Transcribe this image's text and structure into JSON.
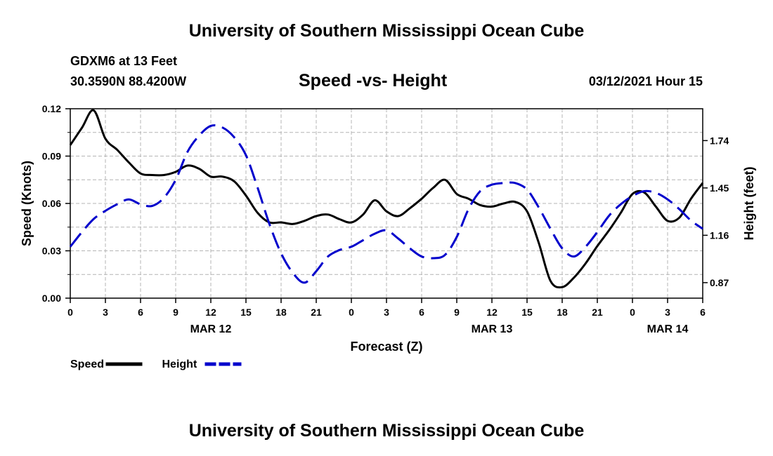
{
  "header": {
    "title": "University of Southern Mississippi Ocean Cube",
    "station": "GDXM6 at 13 Feet",
    "coordinates": "30.3590N 88.4200W",
    "chart_title": "Speed -vs- Height",
    "datetime": "03/12/2021 Hour 15",
    "footer_title": "University of Southern Mississippi Ocean Cube"
  },
  "chart_data": {
    "type": "line",
    "title": "Speed -vs- Height",
    "xlabel": "Forecast (Z)",
    "ylabel": "Speed (Knots)",
    "y2label": "Height (feet)",
    "xlim": [
      0,
      54
    ],
    "ylim": [
      0,
      0.12
    ],
    "y2lim": [
      0.775,
      1.935
    ],
    "grid": true,
    "x_ticks": [
      {
        "x": 0,
        "label": "0"
      },
      {
        "x": 3,
        "label": "3"
      },
      {
        "x": 6,
        "label": "6"
      },
      {
        "x": 9,
        "label": "9"
      },
      {
        "x": 12,
        "label": "12"
      },
      {
        "x": 15,
        "label": "15"
      },
      {
        "x": 18,
        "label": "18"
      },
      {
        "x": 21,
        "label": "21"
      },
      {
        "x": 24,
        "label": "0"
      },
      {
        "x": 27,
        "label": "3"
      },
      {
        "x": 30,
        "label": "6"
      },
      {
        "x": 33,
        "label": "9"
      },
      {
        "x": 36,
        "label": "12"
      },
      {
        "x": 39,
        "label": "15"
      },
      {
        "x": 42,
        "label": "18"
      },
      {
        "x": 45,
        "label": "21"
      },
      {
        "x": 48,
        "label": "0"
      },
      {
        "x": 51,
        "label": "3"
      },
      {
        "x": 54,
        "label": "6"
      }
    ],
    "date_labels": [
      {
        "x": 12,
        "label": "MAR 12"
      },
      {
        "x": 36,
        "label": "MAR 13"
      },
      {
        "x": 51,
        "label": "MAR 14"
      }
    ],
    "y_ticks": [
      {
        "v": 0.0,
        "label": "0.00"
      },
      {
        "v": 0.03,
        "label": "0.03"
      },
      {
        "v": 0.06,
        "label": "0.06"
      },
      {
        "v": 0.09,
        "label": "0.09"
      },
      {
        "v": 0.12,
        "label": "0.12"
      }
    ],
    "y2_ticks": [
      {
        "v": 0.87,
        "label": "0.87"
      },
      {
        "v": 1.16,
        "label": "1.16"
      },
      {
        "v": 1.45,
        "label": "1.45"
      },
      {
        "v": 1.74,
        "label": "1.74"
      }
    ],
    "series": [
      {
        "name": "Speed",
        "axis": "left",
        "color": "#000000",
        "dash": "solid",
        "x": [
          0,
          1,
          2,
          3,
          4,
          5,
          6,
          7,
          8,
          9,
          10,
          11,
          12,
          13,
          14,
          15,
          16,
          17,
          18,
          19,
          20,
          21,
          22,
          23,
          24,
          25,
          26,
          27,
          28,
          29,
          30,
          31,
          32,
          33,
          34,
          35,
          36,
          37,
          38,
          39,
          40,
          41,
          42,
          43,
          44,
          45,
          46,
          47,
          48,
          49,
          50,
          51,
          52,
          53,
          54
        ],
        "values": [
          0.097,
          0.108,
          0.119,
          0.101,
          0.094,
          0.086,
          0.079,
          0.078,
          0.078,
          0.08,
          0.084,
          0.082,
          0.077,
          0.077,
          0.074,
          0.065,
          0.054,
          0.048,
          0.048,
          0.047,
          0.049,
          0.052,
          0.053,
          0.05,
          0.048,
          0.053,
          0.062,
          0.055,
          0.052,
          0.057,
          0.063,
          0.07,
          0.075,
          0.066,
          0.063,
          0.059,
          0.058,
          0.06,
          0.061,
          0.055,
          0.035,
          0.011,
          0.007,
          0.013,
          0.022,
          0.033,
          0.043,
          0.054,
          0.066,
          0.067,
          0.058,
          0.049,
          0.051,
          0.063,
          0.073
        ]
      },
      {
        "name": "Height",
        "axis": "right",
        "color": "#0000cc",
        "dash": "dashed",
        "x": [
          0,
          1,
          2,
          3,
          4,
          5,
          6,
          7,
          8,
          9,
          10,
          11,
          12,
          13,
          14,
          15,
          16,
          17,
          18,
          19,
          20,
          21,
          22,
          23,
          24,
          25,
          26,
          27,
          28,
          29,
          30,
          31,
          32,
          33,
          34,
          35,
          36,
          37,
          38,
          39,
          40,
          41,
          42,
          43,
          44,
          45,
          46,
          47,
          48,
          49,
          50,
          51,
          52,
          53,
          54
        ],
        "values": [
          1.09,
          1.18,
          1.26,
          1.31,
          1.35,
          1.38,
          1.35,
          1.34,
          1.39,
          1.5,
          1.67,
          1.77,
          1.83,
          1.82,
          1.76,
          1.65,
          1.45,
          1.23,
          1.05,
          0.93,
          0.87,
          0.94,
          1.03,
          1.07,
          1.09,
          1.13,
          1.17,
          1.19,
          1.14,
          1.08,
          1.03,
          1.02,
          1.04,
          1.15,
          1.32,
          1.43,
          1.47,
          1.48,
          1.48,
          1.44,
          1.33,
          1.2,
          1.08,
          1.03,
          1.09,
          1.18,
          1.28,
          1.35,
          1.4,
          1.43,
          1.42,
          1.38,
          1.32,
          1.25,
          1.2
        ]
      }
    ],
    "legend": [
      {
        "label": "Speed",
        "color": "#000000",
        "dash": "solid"
      },
      {
        "label": "Height",
        "color": "#0000cc",
        "dash": "dashed"
      }
    ]
  }
}
